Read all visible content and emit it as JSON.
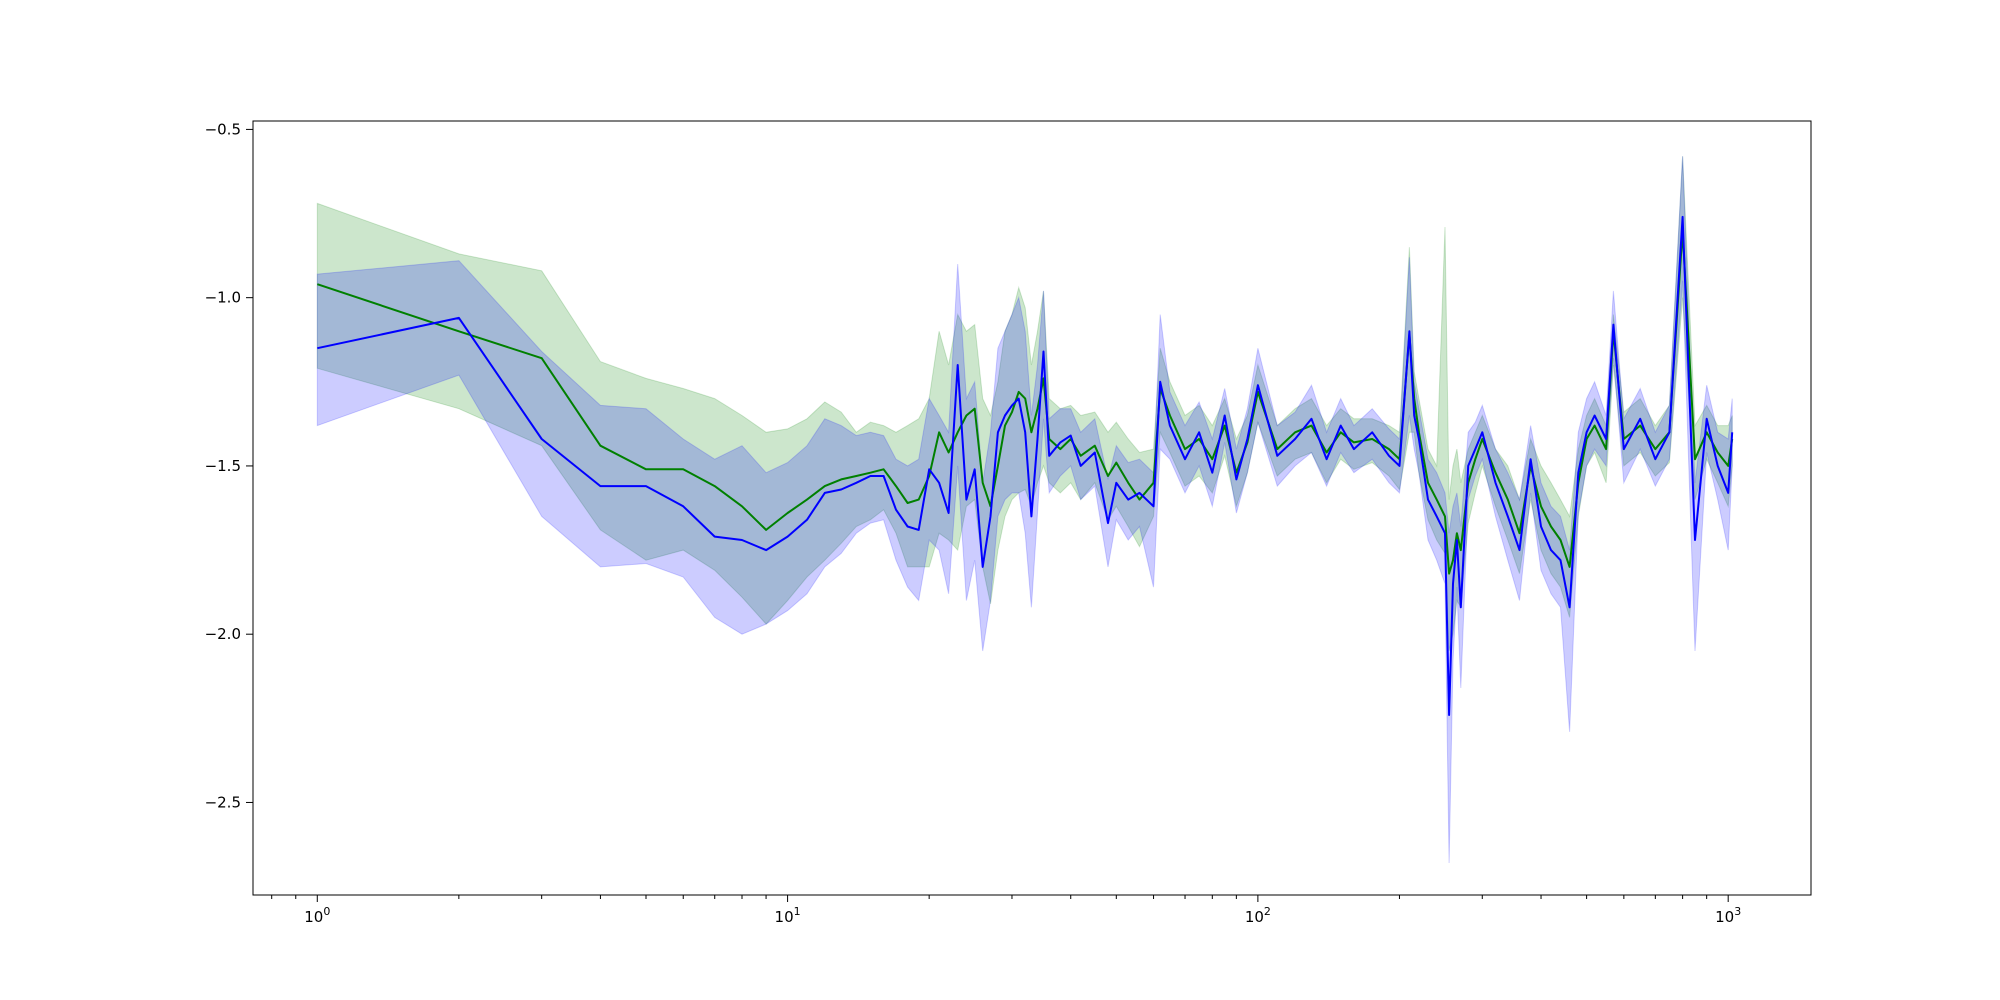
{
  "chart_data": {
    "type": "line",
    "title": "",
    "xlabel": "",
    "ylabel": "",
    "xscale": "log",
    "xlim": [
      0.73,
      1500
    ],
    "ylim": [
      -2.775,
      -0.475
    ],
    "grid": false,
    "legend": "none",
    "x_ticks": [
      {
        "base": "10",
        "exp": "0",
        "value": 1
      },
      {
        "base": "10",
        "exp": "1",
        "value": 10
      },
      {
        "base": "10",
        "exp": "2",
        "value": 100
      },
      {
        "base": "10",
        "exp": "3",
        "value": 1000
      }
    ],
    "y_ticks": [
      {
        "value": -0.5,
        "label": "−0.5"
      },
      {
        "value": -1.0,
        "label": "−1.0"
      },
      {
        "value": -1.5,
        "label": "−1.5"
      },
      {
        "value": -2.0,
        "label": "−2.0"
      },
      {
        "value": -2.5,
        "label": "−2.5"
      }
    ],
    "series": [
      {
        "color": "#008000",
        "band_color": "#008000",
        "band_opacity": 0.2,
        "x": [
          1,
          2,
          3,
          4,
          5,
          6,
          7,
          8,
          9,
          10,
          11,
          12,
          13,
          14,
          15,
          16,
          17,
          18,
          19,
          20,
          21,
          22,
          23,
          24,
          25,
          26,
          27,
          28,
          29,
          30,
          31,
          32,
          33,
          34,
          35,
          36,
          38,
          40,
          42,
          45,
          48,
          50,
          53,
          56,
          60,
          62,
          65,
          70,
          75,
          80,
          85,
          90,
          95,
          100,
          110,
          120,
          130,
          140,
          150,
          160,
          175,
          190,
          200,
          210,
          215,
          220,
          230,
          240,
          250,
          255,
          260,
          265,
          270,
          280,
          290,
          300,
          320,
          340,
          360,
          380,
          400,
          420,
          440,
          460,
          480,
          500,
          520,
          550,
          570,
          600,
          650,
          700,
          750,
          800,
          850,
          900,
          950,
          1000,
          1020
        ],
        "y": [
          -0.96,
          -1.1,
          -1.18,
          -1.44,
          -1.51,
          -1.51,
          -1.56,
          -1.62,
          -1.69,
          -1.64,
          -1.6,
          -1.56,
          -1.54,
          -1.53,
          -1.52,
          -1.51,
          -1.56,
          -1.61,
          -1.6,
          -1.53,
          -1.4,
          -1.46,
          -1.4,
          -1.35,
          -1.33,
          -1.55,
          -1.62,
          -1.5,
          -1.38,
          -1.34,
          -1.28,
          -1.3,
          -1.4,
          -1.33,
          -1.24,
          -1.42,
          -1.45,
          -1.42,
          -1.47,
          -1.44,
          -1.53,
          -1.49,
          -1.55,
          -1.6,
          -1.55,
          -1.27,
          -1.35,
          -1.45,
          -1.42,
          -1.48,
          -1.38,
          -1.52,
          -1.43,
          -1.28,
          -1.45,
          -1.4,
          -1.38,
          -1.46,
          -1.4,
          -1.43,
          -1.42,
          -1.45,
          -1.48,
          -1.11,
          -1.3,
          -1.4,
          -1.55,
          -1.6,
          -1.65,
          -1.82,
          -1.78,
          -1.7,
          -1.75,
          -1.55,
          -1.48,
          -1.42,
          -1.52,
          -1.6,
          -1.7,
          -1.5,
          -1.62,
          -1.68,
          -1.72,
          -1.8,
          -1.55,
          -1.42,
          -1.38,
          -1.45,
          -1.1,
          -1.42,
          -1.38,
          -1.45,
          -1.4,
          -0.8,
          -1.48,
          -1.4,
          -1.46,
          -1.5,
          -1.42
        ],
        "upper": [
          -0.72,
          -0.87,
          -0.92,
          -1.19,
          -1.24,
          -1.27,
          -1.3,
          -1.35,
          -1.4,
          -1.39,
          -1.36,
          -1.31,
          -1.34,
          -1.4,
          -1.37,
          -1.38,
          -1.4,
          -1.38,
          -1.36,
          -1.3,
          -1.1,
          -1.2,
          -1.05,
          -1.1,
          -1.08,
          -1.3,
          -1.35,
          -1.25,
          -1.1,
          -1.05,
          -0.97,
          -1.03,
          -1.2,
          -1.1,
          -0.98,
          -1.3,
          -1.33,
          -1.32,
          -1.35,
          -1.34,
          -1.4,
          -1.37,
          -1.42,
          -1.46,
          -1.45,
          -1.15,
          -1.25,
          -1.35,
          -1.32,
          -1.38,
          -1.3,
          -1.42,
          -1.35,
          -1.2,
          -1.38,
          -1.33,
          -1.3,
          -1.38,
          -1.33,
          -1.36,
          -1.36,
          -1.38,
          -1.4,
          -0.85,
          -1.22,
          -1.3,
          -1.45,
          -1.5,
          -0.79,
          -1.6,
          -1.5,
          -1.45,
          -1.55,
          -1.45,
          -1.4,
          -1.35,
          -1.45,
          -1.5,
          -1.6,
          -1.42,
          -1.5,
          -1.55,
          -1.6,
          -1.65,
          -1.45,
          -1.35,
          -1.3,
          -1.38,
          -1.05,
          -1.34,
          -1.3,
          -1.38,
          -1.32,
          -0.58,
          -1.38,
          -1.32,
          -1.38,
          -1.38,
          -1.35
        ],
        "lower": [
          -1.21,
          -1.33,
          -1.44,
          -1.69,
          -1.78,
          -1.75,
          -1.81,
          -1.89,
          -1.97,
          -1.9,
          -1.83,
          -1.78,
          -1.73,
          -1.68,
          -1.66,
          -1.63,
          -1.7,
          -1.8,
          -1.8,
          -1.8,
          -1.7,
          -1.72,
          -1.75,
          -1.62,
          -1.6,
          -1.8,
          -1.91,
          -1.75,
          -1.65,
          -1.6,
          -1.58,
          -1.57,
          -1.62,
          -1.55,
          -1.5,
          -1.55,
          -1.58,
          -1.55,
          -1.6,
          -1.55,
          -1.66,
          -1.62,
          -1.68,
          -1.74,
          -1.65,
          -1.4,
          -1.46,
          -1.56,
          -1.53,
          -1.58,
          -1.47,
          -1.62,
          -1.52,
          -1.37,
          -1.53,
          -1.48,
          -1.46,
          -1.55,
          -1.48,
          -1.51,
          -1.49,
          -1.53,
          -1.57,
          -1.4,
          -1.4,
          -1.52,
          -1.66,
          -1.72,
          -1.76,
          -2.05,
          -2.0,
          -1.9,
          -1.92,
          -1.67,
          -1.58,
          -1.5,
          -1.62,
          -1.72,
          -1.82,
          -1.6,
          -1.75,
          -1.82,
          -1.86,
          -1.95,
          -1.65,
          -1.5,
          -1.46,
          -1.55,
          -1.2,
          -1.5,
          -1.46,
          -1.53,
          -1.49,
          -1.0,
          -1.6,
          -1.48,
          -1.55,
          -1.62,
          -1.5
        ]
      },
      {
        "color": "#0000ff",
        "band_color": "#0000ff",
        "band_opacity": 0.2,
        "x": [
          1,
          2,
          3,
          4,
          5,
          6,
          7,
          8,
          9,
          10,
          11,
          12,
          13,
          14,
          15,
          16,
          17,
          18,
          19,
          20,
          21,
          22,
          23,
          24,
          25,
          26,
          27,
          28,
          29,
          30,
          31,
          32,
          33,
          34,
          35,
          36,
          38,
          40,
          42,
          45,
          48,
          50,
          53,
          56,
          60,
          62,
          65,
          70,
          75,
          80,
          85,
          90,
          95,
          100,
          110,
          120,
          130,
          140,
          150,
          160,
          175,
          190,
          200,
          210,
          215,
          220,
          230,
          240,
          250,
          255,
          260,
          265,
          270,
          280,
          290,
          300,
          320,
          340,
          360,
          380,
          400,
          420,
          440,
          460,
          480,
          500,
          520,
          550,
          570,
          600,
          650,
          700,
          750,
          800,
          850,
          900,
          950,
          1000,
          1020
        ],
        "y": [
          -1.15,
          -1.06,
          -1.42,
          -1.56,
          -1.56,
          -1.62,
          -1.71,
          -1.72,
          -1.75,
          -1.71,
          -1.66,
          -1.58,
          -1.57,
          -1.55,
          -1.53,
          -1.53,
          -1.63,
          -1.68,
          -1.69,
          -1.51,
          -1.55,
          -1.64,
          -1.2,
          -1.6,
          -1.51,
          -1.8,
          -1.65,
          -1.4,
          -1.35,
          -1.32,
          -1.3,
          -1.4,
          -1.65,
          -1.42,
          -1.16,
          -1.47,
          -1.43,
          -1.41,
          -1.5,
          -1.46,
          -1.67,
          -1.55,
          -1.6,
          -1.58,
          -1.62,
          -1.25,
          -1.38,
          -1.48,
          -1.4,
          -1.52,
          -1.35,
          -1.54,
          -1.42,
          -1.26,
          -1.47,
          -1.42,
          -1.36,
          -1.48,
          -1.38,
          -1.45,
          -1.4,
          -1.47,
          -1.5,
          -1.1,
          -1.35,
          -1.42,
          -1.6,
          -1.65,
          -1.7,
          -2.24,
          -1.85,
          -1.72,
          -1.92,
          -1.5,
          -1.45,
          -1.4,
          -1.55,
          -1.65,
          -1.75,
          -1.48,
          -1.68,
          -1.75,
          -1.78,
          -1.92,
          -1.52,
          -1.4,
          -1.35,
          -1.42,
          -1.08,
          -1.45,
          -1.36,
          -1.48,
          -1.4,
          -0.76,
          -1.72,
          -1.36,
          -1.5,
          -1.58,
          -1.4
        ],
        "upper": [
          -0.93,
          -0.89,
          -1.16,
          -1.32,
          -1.33,
          -1.42,
          -1.48,
          -1.44,
          -1.52,
          -1.49,
          -1.44,
          -1.36,
          -1.38,
          -1.41,
          -1.4,
          -1.41,
          -1.48,
          -1.5,
          -1.48,
          -1.3,
          -1.35,
          -1.4,
          -0.9,
          -1.3,
          -1.25,
          -1.55,
          -1.4,
          -1.15,
          -1.1,
          -1.05,
          -1.0,
          -1.1,
          -1.35,
          -1.2,
          -0.98,
          -1.36,
          -1.33,
          -1.33,
          -1.4,
          -1.36,
          -1.54,
          -1.44,
          -1.49,
          -1.48,
          -1.52,
          -1.05,
          -1.28,
          -1.38,
          -1.31,
          -1.42,
          -1.27,
          -1.45,
          -1.33,
          -1.15,
          -1.38,
          -1.34,
          -1.26,
          -1.4,
          -1.3,
          -1.38,
          -1.33,
          -1.39,
          -1.42,
          -0.88,
          -1.25,
          -1.33,
          -1.48,
          -1.52,
          -1.58,
          -1.7,
          -1.62,
          -1.58,
          -1.68,
          -1.4,
          -1.37,
          -1.32,
          -1.45,
          -1.52,
          -1.6,
          -1.38,
          -1.55,
          -1.62,
          -1.65,
          -1.75,
          -1.4,
          -1.3,
          -1.25,
          -1.35,
          -0.98,
          -1.36,
          -1.27,
          -1.4,
          -1.32,
          -0.58,
          -1.55,
          -1.26,
          -1.4,
          -1.42,
          -1.3
        ],
        "lower": [
          -1.38,
          -1.23,
          -1.65,
          -1.8,
          -1.79,
          -1.83,
          -1.95,
          -2.0,
          -1.97,
          -1.93,
          -1.88,
          -1.8,
          -1.76,
          -1.7,
          -1.67,
          -1.66,
          -1.78,
          -1.86,
          -1.9,
          -1.72,
          -1.75,
          -1.88,
          -1.5,
          -1.9,
          -1.78,
          -2.05,
          -1.9,
          -1.65,
          -1.6,
          -1.58,
          -1.58,
          -1.7,
          -1.92,
          -1.64,
          -1.36,
          -1.58,
          -1.53,
          -1.5,
          -1.6,
          -1.56,
          -1.8,
          -1.66,
          -1.72,
          -1.68,
          -1.86,
          -1.45,
          -1.48,
          -1.58,
          -1.5,
          -1.62,
          -1.43,
          -1.64,
          -1.52,
          -1.37,
          -1.56,
          -1.5,
          -1.46,
          -1.56,
          -1.46,
          -1.52,
          -1.48,
          -1.55,
          -1.58,
          -1.35,
          -1.45,
          -1.52,
          -1.72,
          -1.78,
          -1.85,
          -2.68,
          -2.08,
          -1.86,
          -2.16,
          -1.6,
          -1.53,
          -1.48,
          -1.65,
          -1.78,
          -1.9,
          -1.58,
          -1.81,
          -1.88,
          -1.92,
          -2.29,
          -1.64,
          -1.5,
          -1.45,
          -1.5,
          -1.18,
          -1.55,
          -1.45,
          -1.56,
          -1.48,
          -0.95,
          -2.05,
          -1.46,
          -1.6,
          -1.75,
          -1.5
        ]
      }
    ]
  }
}
